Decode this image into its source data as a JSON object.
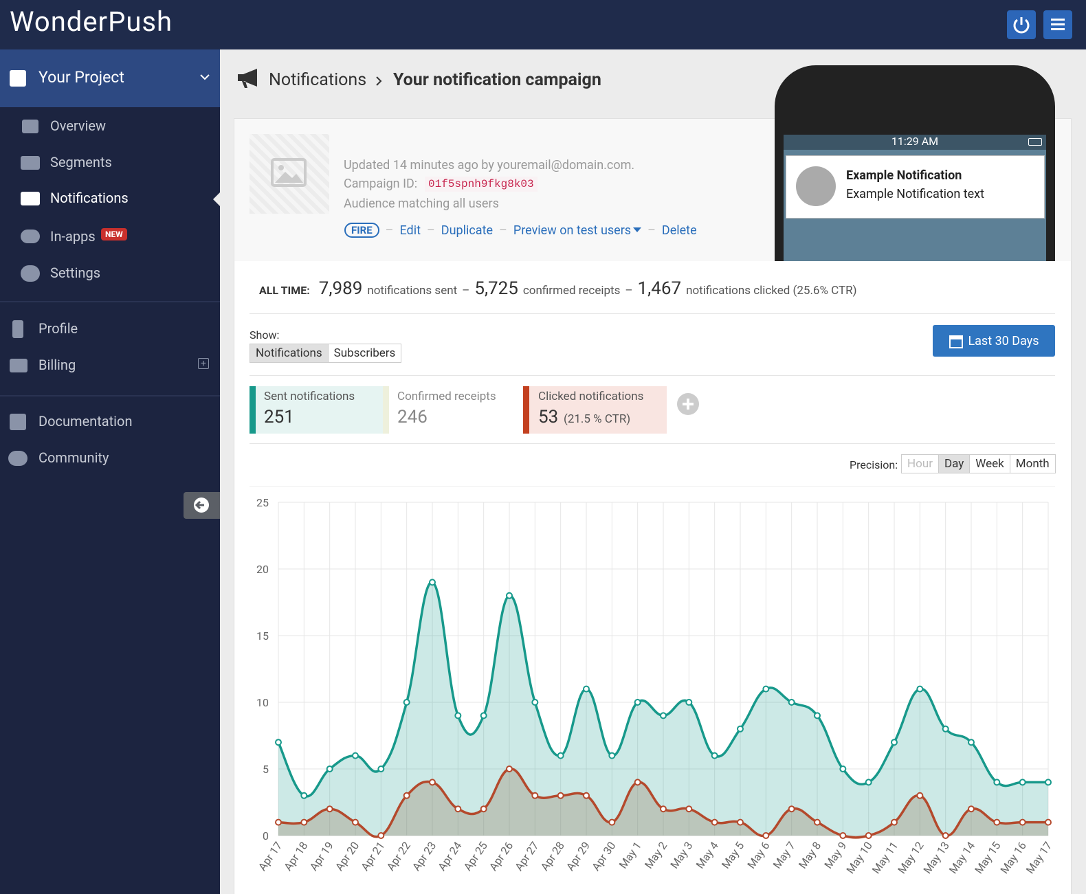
{
  "header": {
    "logo": "WonderPush"
  },
  "sidebar": {
    "project": "Your Project",
    "nav": [
      "Overview",
      "Segments",
      "Notifications",
      "In-apps",
      "Settings"
    ],
    "badge": "NEW",
    "account": [
      "Profile",
      "Billing"
    ],
    "help": [
      "Documentation",
      "Community"
    ]
  },
  "breadcrumb": {
    "section": "Notifications",
    "current": "Your notification campaign"
  },
  "campaign": {
    "updated": "Updated 14 minutes ago by youremail@domain.com.",
    "id_label": "Campaign ID:",
    "id": "01f5spnh9fkg8k03",
    "audience": "Audience matching all users",
    "actions": [
      "FIRE",
      "Edit",
      "Duplicate",
      "Preview on test users",
      "Delete"
    ],
    "separator": "–"
  },
  "phone": {
    "time": "11:29 AM",
    "title": "Example Notification",
    "text": "Example Notification text"
  },
  "stats": {
    "label": "ALL TIME:",
    "separator": "–",
    "items": [
      {
        "value": "7,989",
        "label": "notifications sent"
      },
      {
        "value": "5,725",
        "label": "confirmed receipts"
      },
      {
        "value": "1,467",
        "label": "notifications clicked (25.6% CTR)"
      }
    ]
  },
  "show": {
    "label": "Show:",
    "options": [
      "Notifications",
      "Subscribers"
    ],
    "range": "Last 30 Days"
  },
  "cards": [
    {
      "label": "Sent notifications",
      "value": 251
    },
    {
      "label": "Confirmed receipts",
      "value": 246
    },
    {
      "label": "Clicked notifications",
      "value": 53,
      "note": "(21.5 % CTR)"
    }
  ],
  "precision": {
    "label": "Precision:",
    "options": [
      "Hour",
      "Day",
      "Week",
      "Month"
    ]
  },
  "chart_data": {
    "type": "line",
    "categories": [
      "Apr 17",
      "Apr 18",
      "Apr 19",
      "Apr 20",
      "Apr 21",
      "Apr 22",
      "Apr 23",
      "Apr 24",
      "Apr 25",
      "Apr 26",
      "Apr 27",
      "Apr 28",
      "Apr 29",
      "Apr 30",
      "May 1",
      "May 2",
      "May 3",
      "May 4",
      "May 5",
      "May 6",
      "May 7",
      "May 8",
      "May 9",
      "May 10",
      "May 11",
      "May 12",
      "May 13",
      "May 14",
      "May 15",
      "May 16",
      "May 17"
    ],
    "series": [
      {
        "color": "#17998b",
        "values": [
          7,
          3,
          5,
          6,
          5,
          10,
          19,
          9,
          9,
          18,
          10,
          6,
          11,
          6,
          10,
          9,
          10,
          6,
          8,
          11,
          10,
          9,
          5,
          4,
          7,
          11,
          8,
          7,
          4,
          4,
          4
        ]
      },
      {
        "color": "#b4492c",
        "values": [
          1,
          1,
          2,
          1,
          0,
          3,
          4,
          2,
          2,
          5,
          3,
          3,
          3,
          1,
          4,
          2,
          2,
          1,
          1,
          0,
          2,
          1,
          0,
          0,
          1,
          3,
          0,
          2,
          1,
          1,
          1
        ]
      }
    ],
    "ylim": [
      0,
      25
    ],
    "yticks": [
      0,
      5,
      10,
      15,
      20,
      25
    ],
    "grid": true
  }
}
